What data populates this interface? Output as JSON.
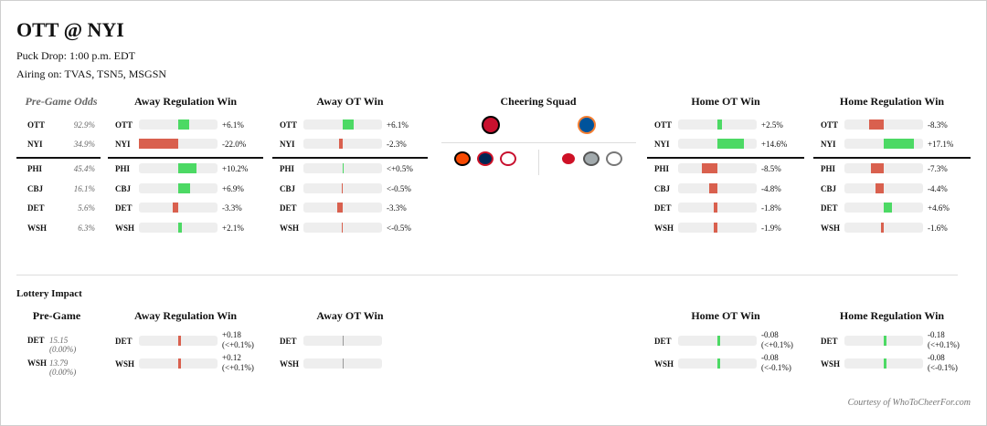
{
  "header": {
    "title": "OTT @ NYI",
    "puck_drop": "Puck Drop: 1:00 p.m. EDT",
    "airing": "Airing on: TVAS, TSN5, MSGSN"
  },
  "colors": {
    "positive": "#4cd964",
    "negative": "#d9604e",
    "track": "#eeeeee"
  },
  "odds_header": "Pre-Game Odds",
  "column_headers": {
    "away_reg": "Away Regulation Win",
    "away_ot": "Away OT Win",
    "squad": "Cheering Squad",
    "home_ot": "Home OT Win",
    "home_reg": "Home Regulation Win"
  },
  "teams": [
    {
      "abbr": "OTT",
      "pct": "92.9%"
    },
    {
      "abbr": "NYI",
      "pct": "34.9%"
    },
    {
      "abbr": "PHI",
      "pct": "45.4%"
    },
    {
      "abbr": "CBJ",
      "pct": "16.1%"
    },
    {
      "abbr": "DET",
      "pct": "5.6%"
    },
    {
      "abbr": "WSH",
      "pct": "6.3%"
    }
  ],
  "scenarios": {
    "away_reg": [
      {
        "team": "OTT",
        "label": "+6.1%",
        "change": 6.1
      },
      {
        "team": "NYI",
        "label": "-22.0%",
        "change": -22.0
      },
      {
        "team": "PHI",
        "label": "+10.2%",
        "change": 10.2
      },
      {
        "team": "CBJ",
        "label": "+6.9%",
        "change": 6.9
      },
      {
        "team": "DET",
        "label": "-3.3%",
        "change": -3.3
      },
      {
        "team": "WSH",
        "label": "+2.1%",
        "change": 2.1
      }
    ],
    "away_ot": [
      {
        "team": "OTT",
        "label": "+6.1%",
        "change": 6.1
      },
      {
        "team": "NYI",
        "label": "-2.3%",
        "change": -2.3
      },
      {
        "team": "PHI",
        "label": "<+0.5%",
        "change": 0.1
      },
      {
        "team": "CBJ",
        "label": "<-0.5%",
        "change": -0.1
      },
      {
        "team": "DET",
        "label": "-3.3%",
        "change": -3.3
      },
      {
        "team": "WSH",
        "label": "<-0.5%",
        "change": -0.1
      }
    ],
    "home_ot": [
      {
        "team": "OTT",
        "label": "+2.5%",
        "change": 2.5
      },
      {
        "team": "NYI",
        "label": "+14.6%",
        "change": 14.6
      },
      {
        "team": "PHI",
        "label": "-8.5%",
        "change": -8.5
      },
      {
        "team": "CBJ",
        "label": "-4.8%",
        "change": -4.8
      },
      {
        "team": "DET",
        "label": "-1.8%",
        "change": -1.8
      },
      {
        "team": "WSH",
        "label": "-1.9%",
        "change": -1.9
      }
    ],
    "home_reg": [
      {
        "team": "OTT",
        "label": "-8.3%",
        "change": -8.3
      },
      {
        "team": "NYI",
        "label": "+17.1%",
        "change": 17.1
      },
      {
        "team": "PHI",
        "label": "-7.3%",
        "change": -7.3
      },
      {
        "team": "CBJ",
        "label": "-4.4%",
        "change": -4.4
      },
      {
        "team": "DET",
        "label": "+4.6%",
        "change": 4.6
      },
      {
        "team": "WSH",
        "label": "-1.6%",
        "change": -1.6
      }
    ]
  },
  "squad": {
    "away_logo": "ottawa-senators-logo",
    "home_logo": "new-york-islanders-logo",
    "away_supporters": [
      "philadelphia-flyers-logo",
      "columbus-blue-jackets-logo",
      "washington-capitals-logo"
    ],
    "home_supporters": [
      "detroit-red-wings-logo",
      "detroit-red-wings-logo",
      "washington-capitals-logo"
    ]
  },
  "lottery": {
    "title": "Lottery Impact",
    "pregame_header": "Pre-Game",
    "pregame": [
      {
        "abbr": "DET",
        "value": "15.15 (0.00%)"
      },
      {
        "abbr": "WSH",
        "value": "13.79 (0.00%)"
      }
    ],
    "away_reg": [
      {
        "team": "DET",
        "line1": "+0.18",
        "line2": "(<+0.1%)",
        "dir": -1
      },
      {
        "team": "WSH",
        "line1": "+0.12",
        "line2": "(<+0.1%)",
        "dir": -1
      }
    ],
    "away_ot": [
      {
        "team": "DET",
        "line1": "",
        "line2": "",
        "dir": 0
      },
      {
        "team": "WSH",
        "line1": "",
        "line2": "",
        "dir": 0
      }
    ],
    "home_ot": [
      {
        "team": "DET",
        "line1": "-0.08",
        "line2": "(<+0.1%)",
        "dir": 1
      },
      {
        "team": "WSH",
        "line1": "-0.08",
        "line2": "(<-0.1%)",
        "dir": 1
      }
    ],
    "home_reg": [
      {
        "team": "DET",
        "line1": "-0.18",
        "line2": "(<+0.1%)",
        "dir": 1
      },
      {
        "team": "WSH",
        "line1": "-0.08",
        "line2": "(<-0.1%)",
        "dir": 1
      }
    ]
  },
  "credit": "Courtesy of WhoToCheerFor.com"
}
